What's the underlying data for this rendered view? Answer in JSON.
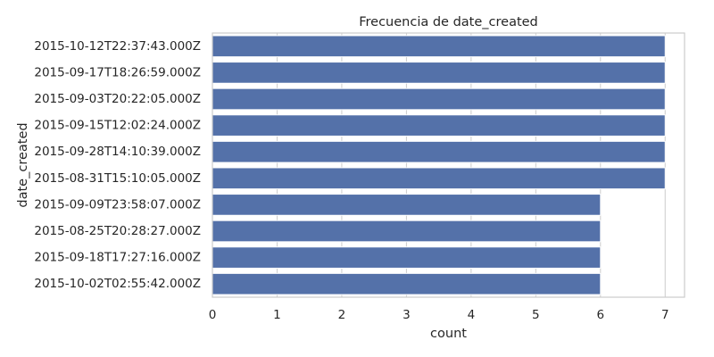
{
  "chart_data": {
    "type": "bar",
    "orientation": "horizontal",
    "title": "Frecuencia de date_created",
    "xlabel": "count",
    "ylabel": "date_created",
    "xlim": [
      0,
      7.3
    ],
    "xticks": [
      0,
      1,
      2,
      3,
      4,
      5,
      6,
      7
    ],
    "grid": true,
    "bar_color": "#5471a9",
    "categories": [
      "2015-10-12T22:37:43.000Z",
      "2015-09-17T18:26:59.000Z",
      "2015-09-03T20:22:05.000Z",
      "2015-09-15T12:02:24.000Z",
      "2015-09-28T14:10:39.000Z",
      "2015-08-31T15:10:05.000Z",
      "2015-09-09T23:58:07.000Z",
      "2015-08-25T20:28:27.000Z",
      "2015-09-18T17:27:16.000Z",
      "2015-10-02T02:55:42.000Z"
    ],
    "values": [
      7,
      7,
      7,
      7,
      7,
      7,
      6,
      6,
      6,
      6
    ]
  }
}
